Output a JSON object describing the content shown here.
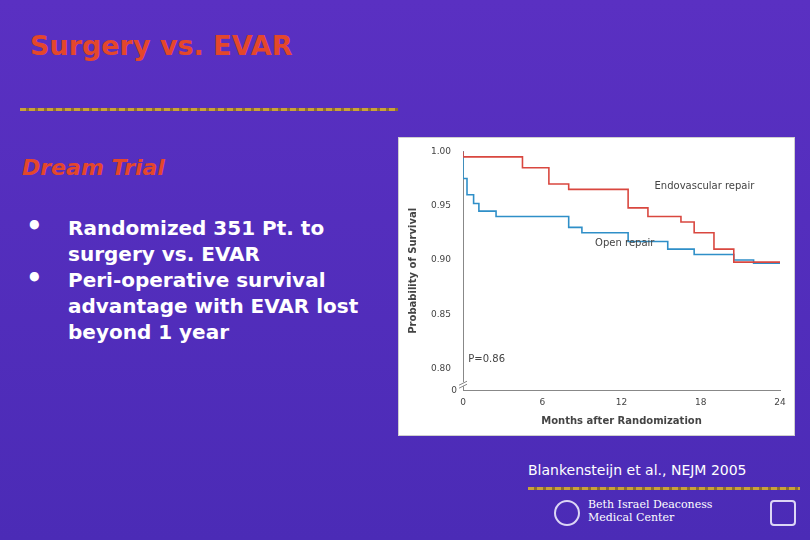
{
  "slide": {
    "title": "Surgery vs. EVAR",
    "subtitle": "Dream Trial",
    "bullets": [
      "Randomized 351 Pt. to surgery vs. EVAR",
      "Peri-operative survival advantage with EVAR lost beyond 1 year"
    ],
    "citation": "Blankensteijn et al., NEJM 2005",
    "footer": [
      "Beth Israel Deaconess",
      "Medical Center"
    ]
  },
  "chart_data": {
    "type": "line",
    "line_style": "step",
    "x_label": "Months after Randomization",
    "y_label": "Probability of Survival",
    "xlim": [
      0,
      24
    ],
    "xticks": [
      0,
      6,
      12,
      18,
      24
    ],
    "ylim": [
      0.78,
      1.0
    ],
    "yticks": [
      {
        "value": 0.8,
        "label": "0.80"
      },
      {
        "value": 0.85,
        "label": "0.85"
      },
      {
        "value": 0.9,
        "label": "0.90"
      },
      {
        "value": 0.95,
        "label": "0.95"
      },
      {
        "value": 1.0,
        "label": "1.00"
      }
    ],
    "y_break_label": "0",
    "grid": false,
    "series": [
      {
        "name": "Endovascular repair",
        "color": "#d9473f",
        "label_pos": [
          14.5,
          0.968
        ],
        "x": [
          0,
          4.5,
          6.5,
          8,
          12.5,
          14,
          16.5,
          17.5,
          19,
          20.5,
          22,
          24
        ],
        "values": [
          1.0,
          0.995,
          0.985,
          0.97,
          0.965,
          0.948,
          0.94,
          0.935,
          0.925,
          0.91,
          0.898,
          0.898
        ]
      },
      {
        "name": "Open repair",
        "color": "#2f8fc8",
        "label_pos": [
          10,
          0.915
        ],
        "x": [
          0,
          0.3,
          0.8,
          1.2,
          2.5,
          8,
          9,
          12.5,
          15.5,
          17.5,
          20.5,
          22,
          23.5,
          24
        ],
        "values": [
          1.0,
          0.975,
          0.96,
          0.952,
          0.945,
          0.94,
          0.93,
          0.925,
          0.917,
          0.91,
          0.905,
          0.9,
          0.897,
          0.897
        ]
      }
    ],
    "annotations": [
      {
        "text": "P=0.86",
        "x": 0.4,
        "y": 0.808
      }
    ]
  }
}
